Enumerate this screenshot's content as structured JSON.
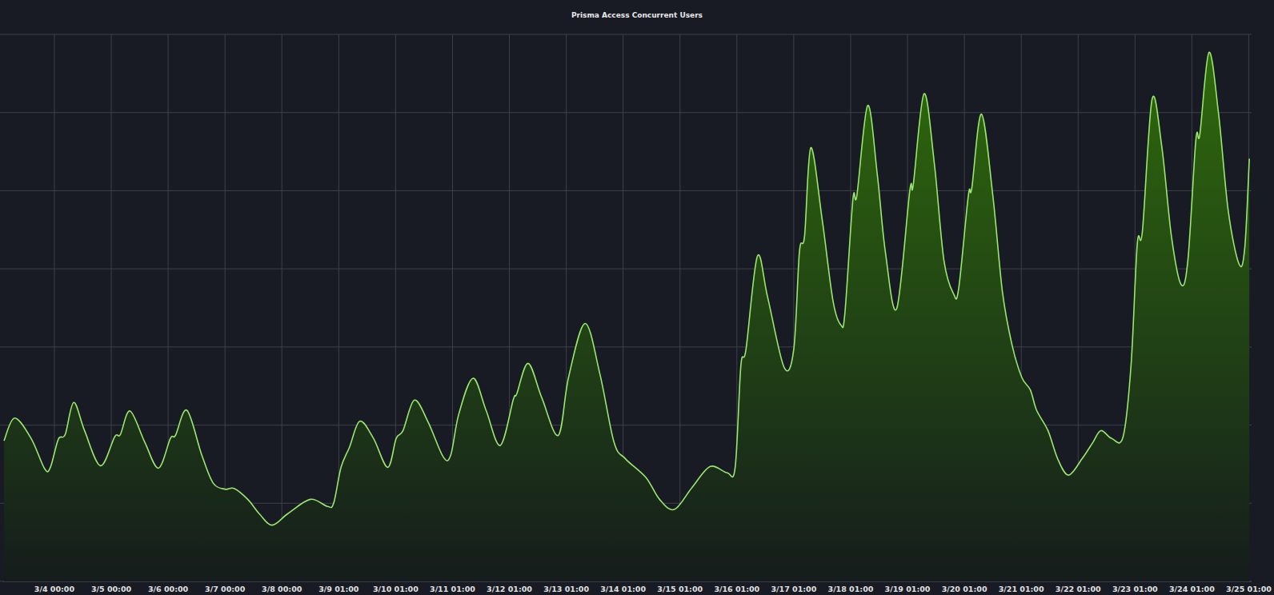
{
  "chart_data": {
    "type": "area",
    "title": "Prisma Access Concurrent Users",
    "x": [
      -0.886,
      -0.7,
      -0.41,
      -0.17,
      -0.07,
      0.07,
      0.19,
      0.34,
      0.53,
      0.81,
      1.06,
      1.16,
      1.33,
      1.59,
      1.83,
      2.04,
      2.13,
      2.33,
      2.59,
      2.79,
      3.0,
      3.16,
      3.4,
      3.61,
      3.83,
      4.11,
      4.5,
      4.8,
      4.91,
      5.04,
      5.19,
      5.37,
      5.61,
      5.86,
      6.01,
      6.13,
      6.33,
      6.57,
      6.84,
      6.97,
      7.11,
      7.36,
      7.59,
      7.84,
      8.07,
      8.13,
      8.33,
      8.57,
      8.86,
      9.04,
      9.33,
      9.59,
      9.84,
      10.04,
      10.4,
      10.64,
      10.9,
      11.21,
      11.53,
      11.83,
      11.97,
      12.07,
      12.16,
      12.36,
      12.54,
      12.83,
      13.0,
      13.1,
      13.19,
      13.3,
      13.5,
      13.69,
      13.83,
      13.9,
      14.04,
      14.11,
      14.3,
      14.47,
      14.61,
      14.81,
      15.04,
      15.1,
      15.29,
      15.47,
      15.64,
      15.81,
      15.9,
      16.07,
      16.13,
      16.3,
      16.5,
      16.67,
      16.84,
      17.01,
      17.16,
      17.27,
      17.47,
      17.64,
      17.83,
      18.07,
      18.26,
      18.4,
      18.59,
      18.79,
      18.93,
      19.04,
      19.13,
      19.3,
      19.47,
      19.64,
      19.81,
      19.93,
      20.07,
      20.14,
      20.3,
      20.47,
      20.64,
      20.83,
      20.93,
      21.01
    ],
    "values": [
      1.8,
      2.09,
      1.83,
      1.44,
      1.46,
      1.82,
      1.88,
      2.29,
      1.93,
      1.48,
      1.85,
      1.88,
      2.18,
      1.78,
      1.45,
      1.83,
      1.87,
      2.19,
      1.62,
      1.26,
      1.18,
      1.19,
      1.05,
      0.86,
      0.72,
      0.87,
      1.05,
      0.96,
      1.0,
      1.46,
      1.72,
      2.05,
      1.83,
      1.46,
      1.83,
      1.93,
      2.32,
      2.04,
      1.59,
      1.62,
      2.14,
      2.6,
      2.19,
      1.74,
      2.33,
      2.4,
      2.79,
      2.35,
      1.87,
      2.61,
      3.3,
      2.66,
      1.78,
      1.57,
      1.33,
      1.05,
      0.92,
      1.2,
      1.47,
      1.39,
      1.46,
      2.76,
      2.97,
      4.16,
      3.64,
      2.74,
      2.97,
      4.22,
      4.42,
      5.55,
      4.63,
      3.59,
      3.28,
      3.44,
      4.89,
      4.94,
      6.09,
      5.2,
      4.22,
      3.49,
      5.0,
      5.07,
      6.24,
      5.36,
      4.11,
      3.68,
      3.75,
      4.94,
      5.03,
      5.98,
      4.94,
      3.7,
      3.02,
      2.61,
      2.45,
      2.19,
      1.93,
      1.57,
      1.36,
      1.57,
      1.78,
      1.93,
      1.83,
      1.85,
      2.76,
      4.32,
      4.48,
      6.17,
      5.57,
      4.42,
      3.8,
      4.11,
      5.65,
      5.72,
      6.77,
      5.98,
      4.74,
      4.06,
      4.27,
      5.41
    ],
    "color": "#9ae66e",
    "xlim": [
      -0.9,
      21.05
    ],
    "xticks": [
      {
        "value": 0,
        "label": "3/4 00:00"
      },
      {
        "value": 1,
        "label": "3/5 00:00"
      },
      {
        "value": 2,
        "label": "3/6 00:00"
      },
      {
        "value": 3,
        "label": "3/7 00:00"
      },
      {
        "value": 4,
        "label": "3/8 00:00"
      },
      {
        "value": 5,
        "label": "3/9 01:00"
      },
      {
        "value": 6,
        "label": "3/10 01:00"
      },
      {
        "value": 7,
        "label": "3/11 01:00"
      },
      {
        "value": 8,
        "label": "3/12 01:00"
      },
      {
        "value": 9,
        "label": "3/13 01:00"
      },
      {
        "value": 10,
        "label": "3/14 01:00"
      },
      {
        "value": 11,
        "label": "3/15 01:00"
      },
      {
        "value": 12,
        "label": "3/16 01:00"
      },
      {
        "value": 13,
        "label": "3/17 01:00"
      },
      {
        "value": 14,
        "label": "3/18 01:00"
      },
      {
        "value": 15,
        "label": "3/19 01:00"
      },
      {
        "value": 16,
        "label": "3/20 01:00"
      },
      {
        "value": 17,
        "label": "3/21 01:00"
      },
      {
        "value": 18,
        "label": "3/22 01:00"
      },
      {
        "value": 19,
        "label": "3/23 01:00"
      },
      {
        "value": 20,
        "label": "3/24 01:00"
      },
      {
        "value": 21,
        "label": "3/25 01:00"
      }
    ],
    "ylim": [
      0,
      7
    ],
    "yticks": [
      0,
      1,
      2,
      3,
      4,
      5,
      6,
      7
    ],
    "grid": true,
    "tick_labels": "x"
  }
}
